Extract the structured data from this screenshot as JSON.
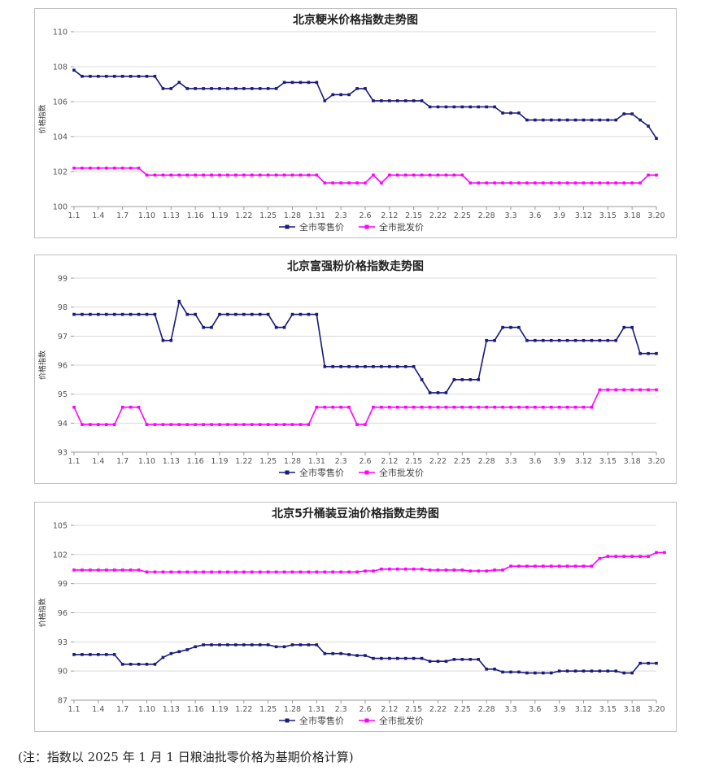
{
  "note": "(注：指数以 2025 年 1 月 1 日粮油批零价格为基期价格计算)",
  "chart_data": [
    {
      "type": "line",
      "title": "北京粳米价格指数走势图",
      "ylabel": "价格指数",
      "ylim": [
        100,
        110
      ],
      "yticks": [
        100,
        102,
        104,
        106,
        108,
        110
      ],
      "grid": true,
      "legend": "bottom",
      "categories_shown": [
        "1.1",
        "1.4",
        "1.7",
        "1.10",
        "1.13",
        "1.16",
        "1.19",
        "1.22",
        "1.25",
        "1.28",
        "1.31",
        "2.3",
        "2.6",
        "2.12",
        "2.15",
        "2.22",
        "2.25",
        "2.28",
        "3.3",
        "3.6",
        "3.9",
        "3.12",
        "3.15",
        "3.18",
        "3.20"
      ],
      "series": [
        {
          "name": "全市零售价",
          "color": "#1a1a7e",
          "marker": "square",
          "values": [
            107.8,
            107.45,
            107.45,
            107.45,
            107.45,
            107.45,
            107.45,
            107.45,
            107.45,
            107.45,
            107.45,
            106.75,
            106.75,
            107.1,
            106.75,
            106.75,
            106.75,
            106.75,
            106.75,
            106.75,
            106.75,
            106.75,
            106.75,
            106.75,
            106.75,
            106.75,
            107.1,
            107.1,
            107.1,
            107.1,
            107.1,
            106.05,
            106.4,
            106.4,
            106.4,
            106.75,
            106.75,
            106.05,
            106.05,
            106.05,
            106.05,
            106.05,
            106.05,
            106.05,
            105.7,
            105.7,
            105.7,
            105.7,
            105.7,
            105.7,
            105.7,
            105.7,
            105.7,
            105.35,
            105.35,
            105.35,
            104.95,
            104.95,
            104.95,
            104.95,
            104.95,
            104.95,
            104.95,
            104.95,
            104.95,
            104.95,
            104.95,
            104.95,
            105.3,
            105.3,
            104.95,
            104.6,
            103.9
          ]
        },
        {
          "name": "全市批发价",
          "color": "#ff00ff",
          "marker": "square",
          "values": [
            102.2,
            102.2,
            102.2,
            102.2,
            102.2,
            102.2,
            102.2,
            102.2,
            102.2,
            101.8,
            101.8,
            101.8,
            101.8,
            101.8,
            101.8,
            101.8,
            101.8,
            101.8,
            101.8,
            101.8,
            101.8,
            101.8,
            101.8,
            101.8,
            101.8,
            101.8,
            101.8,
            101.8,
            101.8,
            101.8,
            101.8,
            101.35,
            101.35,
            101.35,
            101.35,
            101.35,
            101.35,
            101.8,
            101.35,
            101.8,
            101.8,
            101.8,
            101.8,
            101.8,
            101.8,
            101.8,
            101.8,
            101.8,
            101.8,
            101.35,
            101.35,
            101.35,
            101.35,
            101.35,
            101.35,
            101.35,
            101.35,
            101.35,
            101.35,
            101.35,
            101.35,
            101.35,
            101.35,
            101.35,
            101.35,
            101.35,
            101.35,
            101.35,
            101.35,
            101.35,
            101.35,
            101.8,
            101.8
          ]
        }
      ]
    },
    {
      "type": "line",
      "title": "北京富强粉价格指数走势图",
      "ylabel": "价格指数",
      "ylim": [
        93,
        99
      ],
      "yticks": [
        93,
        94,
        95,
        96,
        97,
        98,
        99
      ],
      "grid": true,
      "legend": "bottom",
      "categories_shown": [
        "1.1",
        "1.4",
        "1.7",
        "1.10",
        "1.13",
        "1.16",
        "1.19",
        "1.22",
        "1.25",
        "1.28",
        "1.31",
        "2.3",
        "2.6",
        "2.12",
        "2.15",
        "2.22",
        "2.25",
        "2.28",
        "3.3",
        "3.6",
        "3.9",
        "3.12",
        "3.15",
        "3.18",
        "3.20"
      ],
      "series": [
        {
          "name": "全市零售价",
          "color": "#1a1a7e",
          "marker": "square",
          "values": [
            97.75,
            97.75,
            97.75,
            97.75,
            97.75,
            97.75,
            97.75,
            97.75,
            97.75,
            97.75,
            97.75,
            96.85,
            96.85,
            98.2,
            97.75,
            97.75,
            97.3,
            97.3,
            97.75,
            97.75,
            97.75,
            97.75,
            97.75,
            97.75,
            97.75,
            97.3,
            97.3,
            97.75,
            97.75,
            97.75,
            97.75,
            95.95,
            95.95,
            95.95,
            95.95,
            95.95,
            95.95,
            95.95,
            95.95,
            95.95,
            95.95,
            95.95,
            95.95,
            95.5,
            95.05,
            95.05,
            95.05,
            95.5,
            95.5,
            95.5,
            95.5,
            96.85,
            96.85,
            97.3,
            97.3,
            97.3,
            96.85,
            96.85,
            96.85,
            96.85,
            96.85,
            96.85,
            96.85,
            96.85,
            96.85,
            96.85,
            96.85,
            96.85,
            97.3,
            97.3,
            96.4,
            96.4,
            96.4
          ]
        },
        {
          "name": "全市批发价",
          "color": "#ff00ff",
          "marker": "square",
          "values": [
            94.55,
            93.95,
            93.95,
            93.95,
            93.95,
            93.95,
            94.55,
            94.55,
            94.55,
            93.95,
            93.95,
            93.95,
            93.95,
            93.95,
            93.95,
            93.95,
            93.95,
            93.95,
            93.95,
            93.95,
            93.95,
            93.95,
            93.95,
            93.95,
            93.95,
            93.95,
            93.95,
            93.95,
            93.95,
            93.95,
            94.55,
            94.55,
            94.55,
            94.55,
            94.55,
            93.95,
            93.95,
            94.55,
            94.55,
            94.55,
            94.55,
            94.55,
            94.55,
            94.55,
            94.55,
            94.55,
            94.55,
            94.55,
            94.55,
            94.55,
            94.55,
            94.55,
            94.55,
            94.55,
            94.55,
            94.55,
            94.55,
            94.55,
            94.55,
            94.55,
            94.55,
            94.55,
            94.55,
            94.55,
            94.55,
            95.15,
            95.15,
            95.15,
            95.15,
            95.15,
            95.15,
            95.15,
            95.15
          ]
        }
      ]
    },
    {
      "type": "line",
      "title": "北京5升桶装豆油价格指数走势图",
      "ylabel": "价格指数",
      "ylim": [
        87,
        105
      ],
      "yticks": [
        87,
        90,
        93,
        96,
        99,
        102,
        105
      ],
      "grid": true,
      "legend": "bottom",
      "categories_shown": [
        "1.1",
        "1.4",
        "1.7",
        "1.10",
        "1.13",
        "1.16",
        "1.19",
        "1.22",
        "1.25",
        "1.28",
        "1.31",
        "2.3",
        "2.6",
        "2.12",
        "2.15",
        "2.22",
        "2.25",
        "2.28",
        "3.3",
        "3.6",
        "3.9",
        "3.12",
        "3.15",
        "3.18",
        "3.20"
      ],
      "series": [
        {
          "name": "全市零售价",
          "color": "#1a1a7e",
          "marker": "square",
          "values": [
            91.7,
            91.7,
            91.7,
            91.7,
            91.7,
            91.7,
            90.7,
            90.7,
            90.7,
            90.7,
            90.7,
            91.4,
            91.8,
            92.0,
            92.2,
            92.5,
            92.7,
            92.7,
            92.7,
            92.7,
            92.7,
            92.7,
            92.7,
            92.7,
            92.7,
            92.5,
            92.5,
            92.7,
            92.7,
            92.7,
            92.7,
            91.8,
            91.8,
            91.8,
            91.7,
            91.6,
            91.6,
            91.3,
            91.3,
            91.3,
            91.3,
            91.3,
            91.3,
            91.3,
            91.0,
            91.0,
            91.0,
            91.2,
            91.2,
            91.2,
            91.2,
            90.2,
            90.2,
            89.9,
            89.9,
            89.9,
            89.8,
            89.8,
            89.8,
            89.8,
            90.0,
            90.0,
            90.0,
            90.0,
            90.0,
            90.0,
            90.0,
            90.0,
            89.8,
            89.8,
            90.8,
            90.8,
            90.8
          ]
        },
        {
          "name": "全市批发价",
          "color": "#ff00ff",
          "marker": "square",
          "values": [
            100.4,
            100.4,
            100.4,
            100.4,
            100.4,
            100.4,
            100.4,
            100.4,
            100.4,
            100.2,
            100.2,
            100.2,
            100.2,
            100.2,
            100.2,
            100.2,
            100.2,
            100.2,
            100.2,
            100.2,
            100.2,
            100.2,
            100.2,
            100.2,
            100.2,
            100.2,
            100.2,
            100.2,
            100.2,
            100.2,
            100.2,
            100.2,
            100.2,
            100.2,
            100.2,
            100.2,
            100.3,
            100.3,
            100.5,
            100.5,
            100.5,
            100.5,
            100.5,
            100.5,
            100.4,
            100.4,
            100.4,
            100.4,
            100.4,
            100.3,
            100.3,
            100.3,
            100.4,
            100.4,
            100.8,
            100.8,
            100.8,
            100.8,
            100.8,
            100.8,
            100.8,
            100.8,
            100.8,
            100.8,
            100.8,
            101.6,
            101.8,
            101.8,
            101.8,
            101.8,
            101.8,
            101.8,
            102.2,
            102.2
          ]
        }
      ]
    }
  ]
}
